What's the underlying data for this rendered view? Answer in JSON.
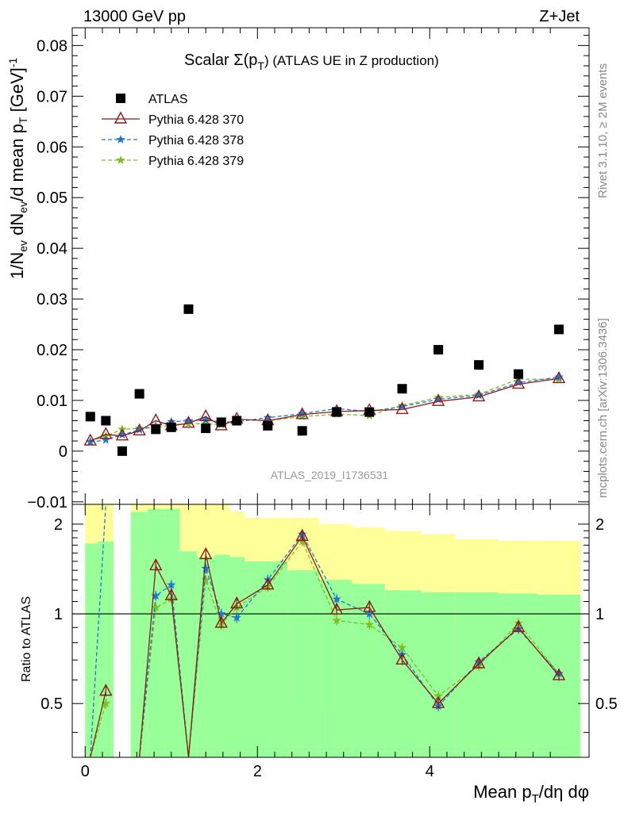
{
  "header": {
    "left": "13000 GeV pp",
    "right": "Z+Jet"
  },
  "side_labels": {
    "rivet": "Rivet 3.1.10, ≥ 2M events",
    "mcplots": "mcplots.cern.ch [arXiv:1306.3436]"
  },
  "analysis_id": "ATLAS_2019_I1736531",
  "legend": [
    {
      "name": "ATLAS",
      "color": "#000000",
      "marker": "square"
    },
    {
      "name": "Pythia 6.428 370",
      "color": "#8b1a1a",
      "marker": "triangle"
    },
    {
      "name": "Pythia 6.428 378",
      "color": "#1f78d1",
      "marker": "star"
    },
    {
      "name": "Pythia 6.428 379",
      "color": "#7fbf1f",
      "marker": "star"
    }
  ],
  "chart_data": [
    {
      "type": "scatter",
      "title": "Scalar Σ(p_T) (ATLAS UE in Z production)",
      "title_parts": {
        "pre": "Scalar ",
        "sigma": "Σ(p",
        "sub": "T",
        "post": ")  (ATLAS UE in Z production)"
      },
      "ylabel": "1/N_ev dN_ev/d mean p_T [GeV]^-1",
      "ylabel_parts": {
        "a": "1/N",
        "a_sub": "ev",
        "b": " dN",
        "b_sub": "ev",
        "c": "/d mean p",
        "c_sub": "T",
        "d": " [GeV]",
        "d_sup": "-1"
      },
      "xlim": [
        -0.15,
        5.85
      ],
      "ylim": [
        -0.0105,
        0.0835
      ],
      "yticks": [
        -0.01,
        0,
        0.01,
        0.02,
        0.03,
        0.04,
        0.05,
        0.06,
        0.07,
        0.08
      ],
      "ytick_labels": [
        "−0.01",
        "0",
        "0.01",
        "0.02",
        "0.03",
        "0.04",
        "0.05",
        "0.06",
        "0.07",
        "0.08"
      ],
      "x": [
        0.06,
        0.24,
        0.43,
        0.63,
        0.82,
        1.0,
        1.2,
        1.4,
        1.58,
        1.76,
        2.12,
        2.52,
        2.92,
        3.3,
        3.68,
        4.1,
        4.57,
        5.03,
        5.5
      ],
      "series": [
        {
          "name": "ATLAS",
          "values": [
            0.0068,
            0.006,
            0.0,
            0.0113,
            0.0043,
            0.0047,
            0.028,
            0.0045,
            0.0057,
            0.006,
            0.005,
            0.004,
            0.0077,
            0.0077,
            0.0123,
            0.02,
            0.017,
            0.0152,
            0.024
          ]
        },
        {
          "name": "Pythia 6.428 370",
          "values": [
            0.002,
            0.0033,
            0.003,
            0.004,
            0.006,
            0.005,
            0.0055,
            0.0068,
            0.005,
            0.0063,
            0.006,
            0.0072,
            0.0078,
            0.008,
            0.0082,
            0.0098,
            0.0107,
            0.0132,
            0.0143
          ]
        },
        {
          "name": "Pythia 6.428 378",
          "values": [
            0.0018,
            0.0022,
            0.0032,
            0.0042,
            0.005,
            0.0058,
            0.006,
            0.0062,
            0.0057,
            0.0058,
            0.0066,
            0.0074,
            0.0084,
            0.0078,
            0.0088,
            0.0102,
            0.011,
            0.0135,
            0.0146
          ]
        },
        {
          "name": "Pythia 6.428 379",
          "values": [
            0.0019,
            0.003,
            0.0043,
            0.0045,
            0.0046,
            0.0052,
            0.0054,
            0.0054,
            0.0052,
            0.0062,
            0.006,
            0.0068,
            0.0073,
            0.007,
            0.009,
            0.0106,
            0.0112,
            0.0142,
            0.0142
          ]
        }
      ]
    },
    {
      "type": "line",
      "ylabel": "Ratio to ATLAS",
      "xlabel": "Mean p_T/dη dφ",
      "xlabel_parts": {
        "a": "Mean p",
        "a_sub": "T",
        "b": "/dη dφ"
      },
      "xlim": [
        -0.15,
        5.85
      ],
      "ylim": [
        0.33,
        2.33
      ],
      "scale": "log",
      "xticks": [
        0,
        2,
        4
      ],
      "xtick_labels": [
        "0",
        "2",
        "4"
      ],
      "yticks": [
        0.5,
        1,
        2
      ],
      "ytick_labels": [
        "0.5",
        "1",
        "2"
      ],
      "bins": [
        [
          0.0,
          0.15
        ],
        [
          0.15,
          0.33
        ],
        [
          0.53,
          0.72
        ],
        [
          0.72,
          0.92
        ],
        [
          0.92,
          1.1
        ],
        [
          1.1,
          1.3
        ],
        [
          1.3,
          1.5
        ],
        [
          1.5,
          1.68
        ],
        [
          1.68,
          1.85
        ],
        [
          1.85,
          2.35
        ],
        [
          2.35,
          2.72
        ],
        [
          2.72,
          3.1
        ],
        [
          3.1,
          3.48
        ],
        [
          3.48,
          3.9
        ],
        [
          3.9,
          4.3
        ],
        [
          4.3,
          4.8
        ],
        [
          4.8,
          5.25
        ],
        [
          5.25,
          5.75
        ]
      ],
      "yellow_band": [
        [
          0.33,
          2.33
        ],
        [
          0.33,
          2.33
        ],
        [
          0.33,
          2.33
        ],
        [
          0.33,
          2.33
        ],
        [
          0.33,
          2.33
        ],
        [
          0.33,
          2.33
        ],
        [
          0.33,
          2.33
        ],
        [
          0.33,
          2.33
        ],
        [
          0.33,
          2.2
        ],
        [
          0.33,
          2.1
        ],
        [
          0.48,
          2.1
        ],
        [
          0.33,
          2.0
        ],
        [
          0.33,
          1.95
        ],
        [
          0.33,
          1.9
        ],
        [
          0.33,
          1.85
        ],
        [
          0.33,
          1.78
        ],
        [
          0.33,
          1.76
        ],
        [
          0.33,
          1.76
        ]
      ],
      "green_band": [
        [
          0.33,
          1.72
        ],
        [
          0.33,
          1.75
        ],
        [
          0.33,
          2.2
        ],
        [
          0.33,
          2.25
        ],
        [
          0.33,
          2.25
        ],
        [
          0.33,
          1.62
        ],
        [
          0.33,
          1.55
        ],
        [
          0.33,
          1.58
        ],
        [
          0.33,
          1.55
        ],
        [
          0.33,
          1.5
        ],
        [
          0.33,
          1.4
        ],
        [
          0.33,
          1.3
        ],
        [
          0.33,
          1.26
        ],
        [
          0.33,
          1.2
        ],
        [
          0.33,
          1.18
        ],
        [
          0.33,
          1.18
        ],
        [
          0.33,
          1.17
        ],
        [
          0.33,
          1.16
        ]
      ],
      "x": [
        0.06,
        0.24,
        0.43,
        0.63,
        0.82,
        1.0,
        1.2,
        1.4,
        1.58,
        1.76,
        2.12,
        2.52,
        2.92,
        3.3,
        3.68,
        4.1,
        4.57,
        5.03,
        5.5
      ],
      "series": [
        {
          "name": "Pythia 6.428 370",
          "values": [
            0.3,
            0.55,
            null,
            0.3,
            1.45,
            1.15,
            0.3,
            1.58,
            0.93,
            1.08,
            1.25,
            1.82,
            1.03,
            1.05,
            0.7,
            0.5,
            0.68,
            0.9,
            0.62
          ]
        },
        {
          "name": "Pythia 6.428 378",
          "values": [
            0.3,
            2.4,
            null,
            0.3,
            1.15,
            1.25,
            0.3,
            1.42,
            1.0,
            0.97,
            1.3,
            1.85,
            1.12,
            1.0,
            0.73,
            0.49,
            0.69,
            0.89,
            0.63
          ]
        },
        {
          "name": "Pythia 6.428 379",
          "values": [
            0.3,
            0.5,
            null,
            0.3,
            1.05,
            1.12,
            0.3,
            1.3,
            0.92,
            1.05,
            1.23,
            1.75,
            0.95,
            0.92,
            0.77,
            0.53,
            0.67,
            0.93,
            0.63
          ]
        }
      ]
    }
  ]
}
